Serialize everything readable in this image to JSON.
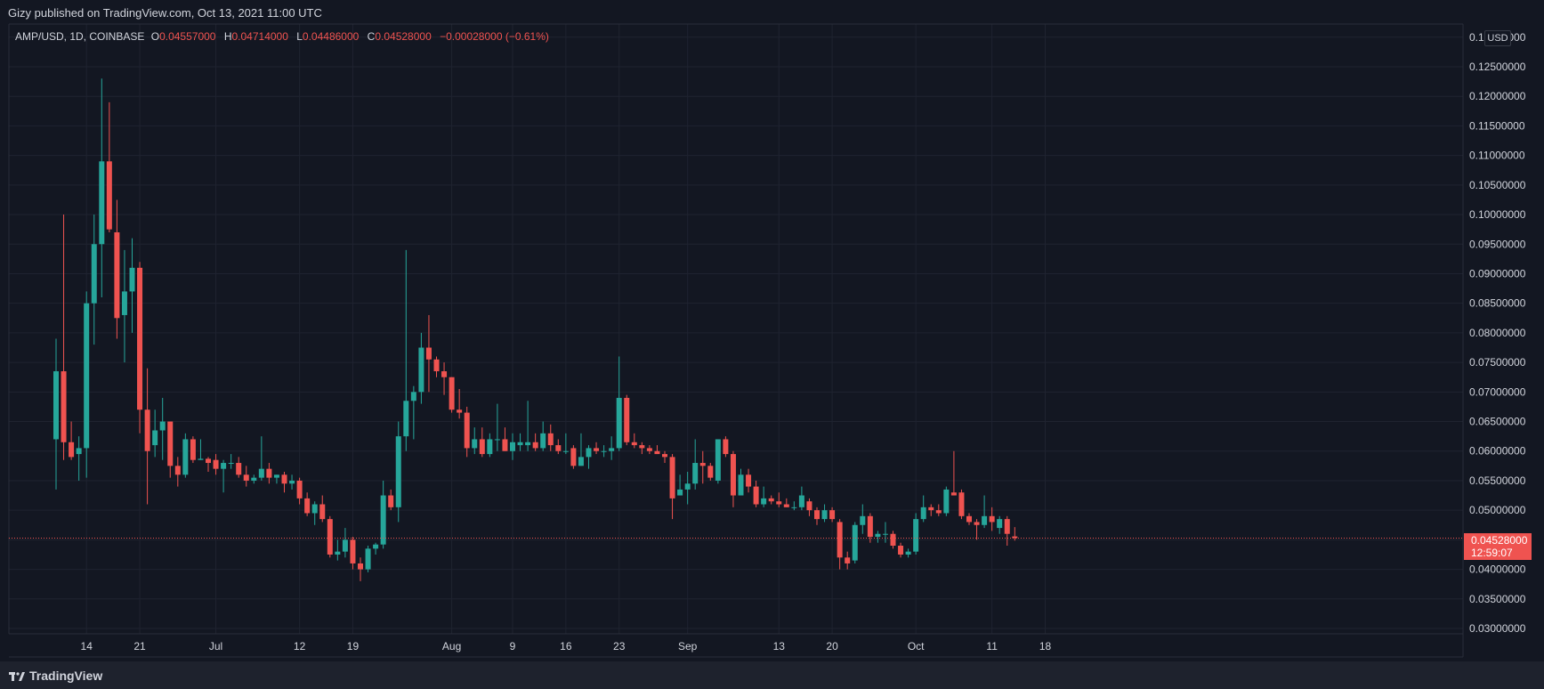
{
  "header": {
    "published_by": "Gizy published on TradingView.com, Oct 13, 2021 11:00 UTC"
  },
  "legend": {
    "symbol": "AMP/USD, 1D, COINBASE",
    "o_label": "O",
    "o": "0.04557000",
    "h_label": "H",
    "h": "0.04714000",
    "l_label": "L",
    "l": "0.04486000",
    "c_label": "C",
    "c": "0.04528000",
    "change": "−0.00028000 (−0.61%)"
  },
  "currency_badge": "USD",
  "last_price": {
    "value": "0.04528000",
    "countdown": "12:59:07"
  },
  "footer": {
    "brand": "TradingView"
  },
  "colors": {
    "up": "#26a69a",
    "down": "#ef5350",
    "background": "#131722",
    "grid": "#1f2330",
    "axis_text": "#d1d4dc"
  },
  "chart_data": {
    "type": "candlestick",
    "symbol": "AMP/USD",
    "interval": "1D",
    "exchange": "COINBASE",
    "ylim": [
      0.03,
      0.1325
    ],
    "y_ticks": [
      "0.03000000",
      "0.03500000",
      "0.04000000",
      "0.04500000",
      "0.05000000",
      "0.05500000",
      "0.06000000",
      "0.06500000",
      "0.07000000",
      "0.07500000",
      "0.08000000",
      "0.08500000",
      "0.09000000",
      "0.09500000",
      "0.10000000",
      "0.10500000",
      "0.11000000",
      "0.11500000",
      "0.12000000",
      "0.12500000",
      "0.13000000"
    ],
    "x_ticks": [
      {
        "label": "14",
        "index": 4
      },
      {
        "label": "21",
        "index": 11
      },
      {
        "label": "Jul",
        "index": 21
      },
      {
        "label": "12",
        "index": 32
      },
      {
        "label": "19",
        "index": 39
      },
      {
        "label": "Aug",
        "index": 52
      },
      {
        "label": "9",
        "index": 60
      },
      {
        "label": "16",
        "index": 67
      },
      {
        "label": "23",
        "index": 74
      },
      {
        "label": "Sep",
        "index": 83
      },
      {
        "label": "13",
        "index": 95
      },
      {
        "label": "20",
        "index": 102
      },
      {
        "label": "Oct",
        "index": 113
      },
      {
        "label": "11",
        "index": 123
      },
      {
        "label": "18",
        "index": 130
      }
    ],
    "candles": [
      {
        "o": 0.062,
        "h": 0.079,
        "l": 0.0535,
        "c": 0.0735
      },
      {
        "o": 0.0735,
        "h": 0.1,
        "l": 0.0585,
        "c": 0.0615
      },
      {
        "o": 0.0615,
        "h": 0.065,
        "l": 0.0585,
        "c": 0.059
      },
      {
        "o": 0.0595,
        "h": 0.0625,
        "l": 0.055,
        "c": 0.0605
      },
      {
        "o": 0.0605,
        "h": 0.087,
        "l": 0.0555,
        "c": 0.085
      },
      {
        "o": 0.085,
        "h": 0.1,
        "l": 0.078,
        "c": 0.095
      },
      {
        "o": 0.095,
        "h": 0.123,
        "l": 0.086,
        "c": 0.109
      },
      {
        "o": 0.109,
        "h": 0.119,
        "l": 0.097,
        "c": 0.0975
      },
      {
        "o": 0.097,
        "h": 0.1025,
        "l": 0.079,
        "c": 0.0825
      },
      {
        "o": 0.083,
        "h": 0.094,
        "l": 0.075,
        "c": 0.087
      },
      {
        "o": 0.087,
        "h": 0.096,
        "l": 0.08,
        "c": 0.091
      },
      {
        "o": 0.091,
        "h": 0.092,
        "l": 0.063,
        "c": 0.067
      },
      {
        "o": 0.067,
        "h": 0.074,
        "l": 0.051,
        "c": 0.06
      },
      {
        "o": 0.061,
        "h": 0.067,
        "l": 0.059,
        "c": 0.0635
      },
      {
        "o": 0.0635,
        "h": 0.069,
        "l": 0.0585,
        "c": 0.065
      },
      {
        "o": 0.065,
        "h": 0.065,
        "l": 0.0555,
        "c": 0.0575
      },
      {
        "o": 0.0575,
        "h": 0.059,
        "l": 0.054,
        "c": 0.056
      },
      {
        "o": 0.056,
        "h": 0.063,
        "l": 0.0555,
        "c": 0.062
      },
      {
        "o": 0.062,
        "h": 0.0625,
        "l": 0.058,
        "c": 0.0585
      },
      {
        "o": 0.0585,
        "h": 0.062,
        "l": 0.0585,
        "c": 0.0587
      },
      {
        "o": 0.0587,
        "h": 0.059,
        "l": 0.0565,
        "c": 0.058
      },
      {
        "o": 0.0585,
        "h": 0.0595,
        "l": 0.056,
        "c": 0.057
      },
      {
        "o": 0.057,
        "h": 0.0585,
        "l": 0.053,
        "c": 0.058
      },
      {
        "o": 0.058,
        "h": 0.0595,
        "l": 0.057,
        "c": 0.058
      },
      {
        "o": 0.058,
        "h": 0.059,
        "l": 0.0555,
        "c": 0.056
      },
      {
        "o": 0.056,
        "h": 0.0575,
        "l": 0.054,
        "c": 0.055
      },
      {
        "o": 0.055,
        "h": 0.056,
        "l": 0.0545,
        "c": 0.0555
      },
      {
        "o": 0.0555,
        "h": 0.0625,
        "l": 0.055,
        "c": 0.057
      },
      {
        "o": 0.057,
        "h": 0.058,
        "l": 0.0545,
        "c": 0.0555
      },
      {
        "o": 0.0555,
        "h": 0.056,
        "l": 0.0545,
        "c": 0.056
      },
      {
        "o": 0.056,
        "h": 0.0565,
        "l": 0.053,
        "c": 0.0545
      },
      {
        "o": 0.0545,
        "h": 0.056,
        "l": 0.0535,
        "c": 0.055
      },
      {
        "o": 0.055,
        "h": 0.0555,
        "l": 0.051,
        "c": 0.052
      },
      {
        "o": 0.052,
        "h": 0.053,
        "l": 0.049,
        "c": 0.0495
      },
      {
        "o": 0.0495,
        "h": 0.0515,
        "l": 0.0475,
        "c": 0.051
      },
      {
        "o": 0.051,
        "h": 0.0525,
        "l": 0.048,
        "c": 0.0485
      },
      {
        "o": 0.0485,
        "h": 0.049,
        "l": 0.042,
        "c": 0.0425
      },
      {
        "o": 0.0425,
        "h": 0.045,
        "l": 0.0415,
        "c": 0.043
      },
      {
        "o": 0.043,
        "h": 0.047,
        "l": 0.042,
        "c": 0.045
      },
      {
        "o": 0.045,
        "h": 0.0455,
        "l": 0.04,
        "c": 0.041
      },
      {
        "o": 0.041,
        "h": 0.042,
        "l": 0.038,
        "c": 0.04
      },
      {
        "o": 0.04,
        "h": 0.044,
        "l": 0.0395,
        "c": 0.0435
      },
      {
        "o": 0.0435,
        "h": 0.0445,
        "l": 0.0425,
        "c": 0.0442
      },
      {
        "o": 0.0442,
        "h": 0.055,
        "l": 0.0435,
        "c": 0.0525
      },
      {
        "o": 0.0525,
        "h": 0.0535,
        "l": 0.05,
        "c": 0.0505
      },
      {
        "o": 0.0505,
        "h": 0.065,
        "l": 0.048,
        "c": 0.0625
      },
      {
        "o": 0.0625,
        "h": 0.094,
        "l": 0.06,
        "c": 0.0685
      },
      {
        "o": 0.0685,
        "h": 0.071,
        "l": 0.062,
        "c": 0.07
      },
      {
        "o": 0.07,
        "h": 0.08,
        "l": 0.068,
        "c": 0.0775
      },
      {
        "o": 0.0775,
        "h": 0.083,
        "l": 0.07,
        "c": 0.0755
      },
      {
        "o": 0.0755,
        "h": 0.076,
        "l": 0.0725,
        "c": 0.0735
      },
      {
        "o": 0.0735,
        "h": 0.075,
        "l": 0.0695,
        "c": 0.0725
      },
      {
        "o": 0.0725,
        "h": 0.0725,
        "l": 0.0665,
        "c": 0.067
      },
      {
        "o": 0.067,
        "h": 0.0705,
        "l": 0.0655,
        "c": 0.0665
      },
      {
        "o": 0.0665,
        "h": 0.0675,
        "l": 0.059,
        "c": 0.0605
      },
      {
        "o": 0.0605,
        "h": 0.064,
        "l": 0.0595,
        "c": 0.062
      },
      {
        "o": 0.062,
        "h": 0.064,
        "l": 0.059,
        "c": 0.0595
      },
      {
        "o": 0.0595,
        "h": 0.063,
        "l": 0.059,
        "c": 0.062
      },
      {
        "o": 0.062,
        "h": 0.068,
        "l": 0.06,
        "c": 0.062
      },
      {
        "o": 0.062,
        "h": 0.064,
        "l": 0.06,
        "c": 0.06
      },
      {
        "o": 0.06,
        "h": 0.063,
        "l": 0.0585,
        "c": 0.0615
      },
      {
        "o": 0.061,
        "h": 0.063,
        "l": 0.06,
        "c": 0.0615
      },
      {
        "o": 0.061,
        "h": 0.0685,
        "l": 0.06,
        "c": 0.0615
      },
      {
        "o": 0.0615,
        "h": 0.063,
        "l": 0.06,
        "c": 0.0605
      },
      {
        "o": 0.0605,
        "h": 0.065,
        "l": 0.06,
        "c": 0.063
      },
      {
        "o": 0.063,
        "h": 0.0645,
        "l": 0.06,
        "c": 0.061
      },
      {
        "o": 0.061,
        "h": 0.062,
        "l": 0.0595,
        "c": 0.06
      },
      {
        "o": 0.06,
        "h": 0.063,
        "l": 0.0595,
        "c": 0.06
      },
      {
        "o": 0.0605,
        "h": 0.061,
        "l": 0.057,
        "c": 0.0575
      },
      {
        "o": 0.0575,
        "h": 0.063,
        "l": 0.0575,
        "c": 0.059
      },
      {
        "o": 0.059,
        "h": 0.061,
        "l": 0.057,
        "c": 0.0605
      },
      {
        "o": 0.0605,
        "h": 0.0615,
        "l": 0.0595,
        "c": 0.06
      },
      {
        "o": 0.06,
        "h": 0.061,
        "l": 0.059,
        "c": 0.06
      },
      {
        "o": 0.06,
        "h": 0.0625,
        "l": 0.0585,
        "c": 0.0605
      },
      {
        "o": 0.0605,
        "h": 0.076,
        "l": 0.06,
        "c": 0.069
      },
      {
        "o": 0.069,
        "h": 0.0695,
        "l": 0.061,
        "c": 0.0615
      },
      {
        "o": 0.0615,
        "h": 0.063,
        "l": 0.0605,
        "c": 0.061
      },
      {
        "o": 0.061,
        "h": 0.0615,
        "l": 0.0595,
        "c": 0.0605
      },
      {
        "o": 0.0605,
        "h": 0.061,
        "l": 0.0595,
        "c": 0.06
      },
      {
        "o": 0.06,
        "h": 0.061,
        "l": 0.0595,
        "c": 0.0595
      },
      {
        "o": 0.0595,
        "h": 0.06,
        "l": 0.058,
        "c": 0.059
      },
      {
        "o": 0.059,
        "h": 0.0595,
        "l": 0.0485,
        "c": 0.052
      },
      {
        "o": 0.0525,
        "h": 0.056,
        "l": 0.0525,
        "c": 0.0535
      },
      {
        "o": 0.0535,
        "h": 0.0565,
        "l": 0.051,
        "c": 0.0545
      },
      {
        "o": 0.0545,
        "h": 0.062,
        "l": 0.0535,
        "c": 0.058
      },
      {
        "o": 0.058,
        "h": 0.06,
        "l": 0.0545,
        "c": 0.0575
      },
      {
        "o": 0.0575,
        "h": 0.058,
        "l": 0.055,
        "c": 0.0555
      },
      {
        "o": 0.055,
        "h": 0.062,
        "l": 0.0545,
        "c": 0.062
      },
      {
        "o": 0.062,
        "h": 0.0625,
        "l": 0.059,
        "c": 0.0595
      },
      {
        "o": 0.0595,
        "h": 0.06,
        "l": 0.0505,
        "c": 0.0525
      },
      {
        "o": 0.0525,
        "h": 0.057,
        "l": 0.0525,
        "c": 0.056
      },
      {
        "o": 0.056,
        "h": 0.057,
        "l": 0.053,
        "c": 0.054
      },
      {
        "o": 0.054,
        "h": 0.055,
        "l": 0.0505,
        "c": 0.051
      },
      {
        "o": 0.051,
        "h": 0.054,
        "l": 0.0505,
        "c": 0.052
      },
      {
        "o": 0.052,
        "h": 0.0525,
        "l": 0.051,
        "c": 0.0515
      },
      {
        "o": 0.0515,
        "h": 0.053,
        "l": 0.0505,
        "c": 0.051
      },
      {
        "o": 0.051,
        "h": 0.052,
        "l": 0.0505,
        "c": 0.0505
      },
      {
        "o": 0.0505,
        "h": 0.0515,
        "l": 0.05,
        "c": 0.0505
      },
      {
        "o": 0.0505,
        "h": 0.054,
        "l": 0.05,
        "c": 0.0525
      },
      {
        "o": 0.0515,
        "h": 0.052,
        "l": 0.049,
        "c": 0.05
      },
      {
        "o": 0.05,
        "h": 0.0505,
        "l": 0.0475,
        "c": 0.0485
      },
      {
        "o": 0.0485,
        "h": 0.051,
        "l": 0.048,
        "c": 0.05
      },
      {
        "o": 0.05,
        "h": 0.0505,
        "l": 0.048,
        "c": 0.0485
      },
      {
        "o": 0.048,
        "h": 0.0485,
        "l": 0.04,
        "c": 0.042
      },
      {
        "o": 0.042,
        "h": 0.043,
        "l": 0.04,
        "c": 0.041
      },
      {
        "o": 0.0415,
        "h": 0.048,
        "l": 0.041,
        "c": 0.0475
      },
      {
        "o": 0.0475,
        "h": 0.051,
        "l": 0.046,
        "c": 0.049
      },
      {
        "o": 0.049,
        "h": 0.0495,
        "l": 0.0445,
        "c": 0.0455
      },
      {
        "o": 0.0455,
        "h": 0.0465,
        "l": 0.0445,
        "c": 0.046
      },
      {
        "o": 0.046,
        "h": 0.048,
        "l": 0.0445,
        "c": 0.046
      },
      {
        "o": 0.046,
        "h": 0.0465,
        "l": 0.0435,
        "c": 0.044
      },
      {
        "o": 0.044,
        "h": 0.0445,
        "l": 0.042,
        "c": 0.0425
      },
      {
        "o": 0.0425,
        "h": 0.0435,
        "l": 0.042,
        "c": 0.043
      },
      {
        "o": 0.043,
        "h": 0.0495,
        "l": 0.0425,
        "c": 0.0485
      },
      {
        "o": 0.0485,
        "h": 0.0525,
        "l": 0.048,
        "c": 0.0505
      },
      {
        "o": 0.0505,
        "h": 0.051,
        "l": 0.049,
        "c": 0.05
      },
      {
        "o": 0.05,
        "h": 0.051,
        "l": 0.049,
        "c": 0.0495
      },
      {
        "o": 0.0495,
        "h": 0.054,
        "l": 0.049,
        "c": 0.0535
      },
      {
        "o": 0.053,
        "h": 0.06,
        "l": 0.0525,
        "c": 0.0525
      },
      {
        "o": 0.053,
        "h": 0.0535,
        "l": 0.0485,
        "c": 0.049
      },
      {
        "o": 0.049,
        "h": 0.0495,
        "l": 0.0475,
        "c": 0.048
      },
      {
        "o": 0.048,
        "h": 0.0485,
        "l": 0.045,
        "c": 0.0475
      },
      {
        "o": 0.0475,
        "h": 0.0525,
        "l": 0.047,
        "c": 0.049
      },
      {
        "o": 0.049,
        "h": 0.0505,
        "l": 0.0465,
        "c": 0.048
      },
      {
        "o": 0.047,
        "h": 0.049,
        "l": 0.046,
        "c": 0.0485
      },
      {
        "o": 0.0485,
        "h": 0.049,
        "l": 0.044,
        "c": 0.046
      },
      {
        "o": 0.04557,
        "h": 0.04714,
        "l": 0.04486,
        "c": 0.04528
      }
    ],
    "last_close": 0.04528
  }
}
